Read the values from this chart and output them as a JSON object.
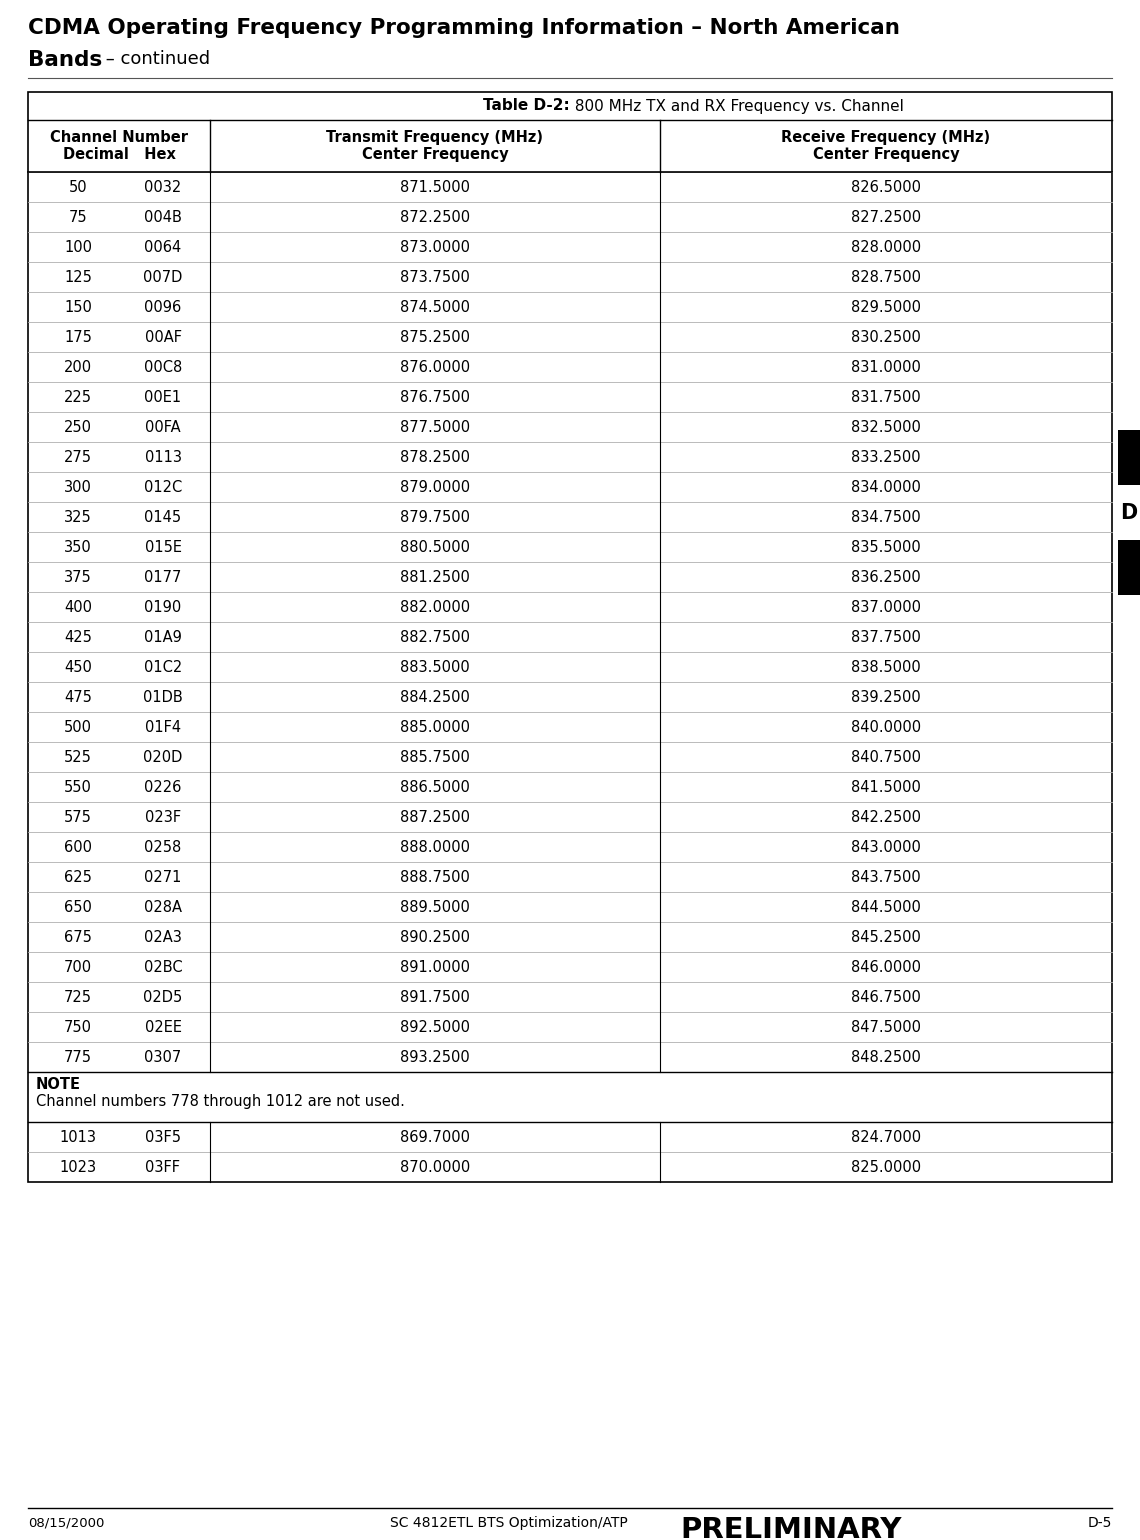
{
  "title_line1": "CDMA Operating Frequency Programming Information – North American",
  "title_line2_bold": "Bands",
  "title_line2_normal": " – continued",
  "table_caption_bold": "Table D-2:",
  "table_caption_normal": " 800 MHz TX and RX Frequency vs. Channel",
  "col1_header_line1": "Channel Number",
  "col1_header_line2": "Decimal   Hex",
  "col2_header_line1": "Transmit Frequency (MHz)",
  "col2_header_line2": "Center Frequency",
  "col3_header_line1": "Receive Frequency (MHz)",
  "col3_header_line2": "Center Frequency",
  "rows": [
    [
      "50",
      "0032",
      "871.5000",
      "826.5000"
    ],
    [
      "75",
      "004B",
      "872.2500",
      "827.2500"
    ],
    [
      "100",
      "0064",
      "873.0000",
      "828.0000"
    ],
    [
      "125",
      "007D",
      "873.7500",
      "828.7500"
    ],
    [
      "150",
      "0096",
      "874.5000",
      "829.5000"
    ],
    [
      "175",
      "00AF",
      "875.2500",
      "830.2500"
    ],
    [
      "200",
      "00C8",
      "876.0000",
      "831.0000"
    ],
    [
      "225",
      "00E1",
      "876.7500",
      "831.7500"
    ],
    [
      "250",
      "00FA",
      "877.5000",
      "832.5000"
    ],
    [
      "275",
      "0113",
      "878.2500",
      "833.2500"
    ],
    [
      "300",
      "012C",
      "879.0000",
      "834.0000"
    ],
    [
      "325",
      "0145",
      "879.7500",
      "834.7500"
    ],
    [
      "350",
      "015E",
      "880.5000",
      "835.5000"
    ],
    [
      "375",
      "0177",
      "881.2500",
      "836.2500"
    ],
    [
      "400",
      "0190",
      "882.0000",
      "837.0000"
    ],
    [
      "425",
      "01A9",
      "882.7500",
      "837.7500"
    ],
    [
      "450",
      "01C2",
      "883.5000",
      "838.5000"
    ],
    [
      "475",
      "01DB",
      "884.2500",
      "839.2500"
    ],
    [
      "500",
      "01F4",
      "885.0000",
      "840.0000"
    ],
    [
      "525",
      "020D",
      "885.7500",
      "840.7500"
    ],
    [
      "550",
      "0226",
      "886.5000",
      "841.5000"
    ],
    [
      "575",
      "023F",
      "887.2500",
      "842.2500"
    ],
    [
      "600",
      "0258",
      "888.0000",
      "843.0000"
    ],
    [
      "625",
      "0271",
      "888.7500",
      "843.7500"
    ],
    [
      "650",
      "028A",
      "889.5000",
      "844.5000"
    ],
    [
      "675",
      "02A3",
      "890.2500",
      "845.2500"
    ],
    [
      "700",
      "02BC",
      "891.0000",
      "846.0000"
    ],
    [
      "725",
      "02D5",
      "891.7500",
      "846.7500"
    ],
    [
      "750",
      "02EE",
      "892.5000",
      "847.5000"
    ],
    [
      "775",
      "0307",
      "893.2500",
      "848.2500"
    ]
  ],
  "note_bold": "NOTE",
  "note_text": "Channel numbers 778 through 1012 are not used.",
  "extra_rows": [
    [
      "1013",
      "03F5",
      "869.7000",
      "824.7000"
    ],
    [
      "1023",
      "03FF",
      "870.0000",
      "825.0000"
    ]
  ],
  "footer_left": "08/15/2000",
  "footer_center": "SC 4812ETL BTS Optimization/ATP",
  "footer_prelim": "PRELIMINARY",
  "footer_right": "D-5",
  "bg_color": "#ffffff"
}
